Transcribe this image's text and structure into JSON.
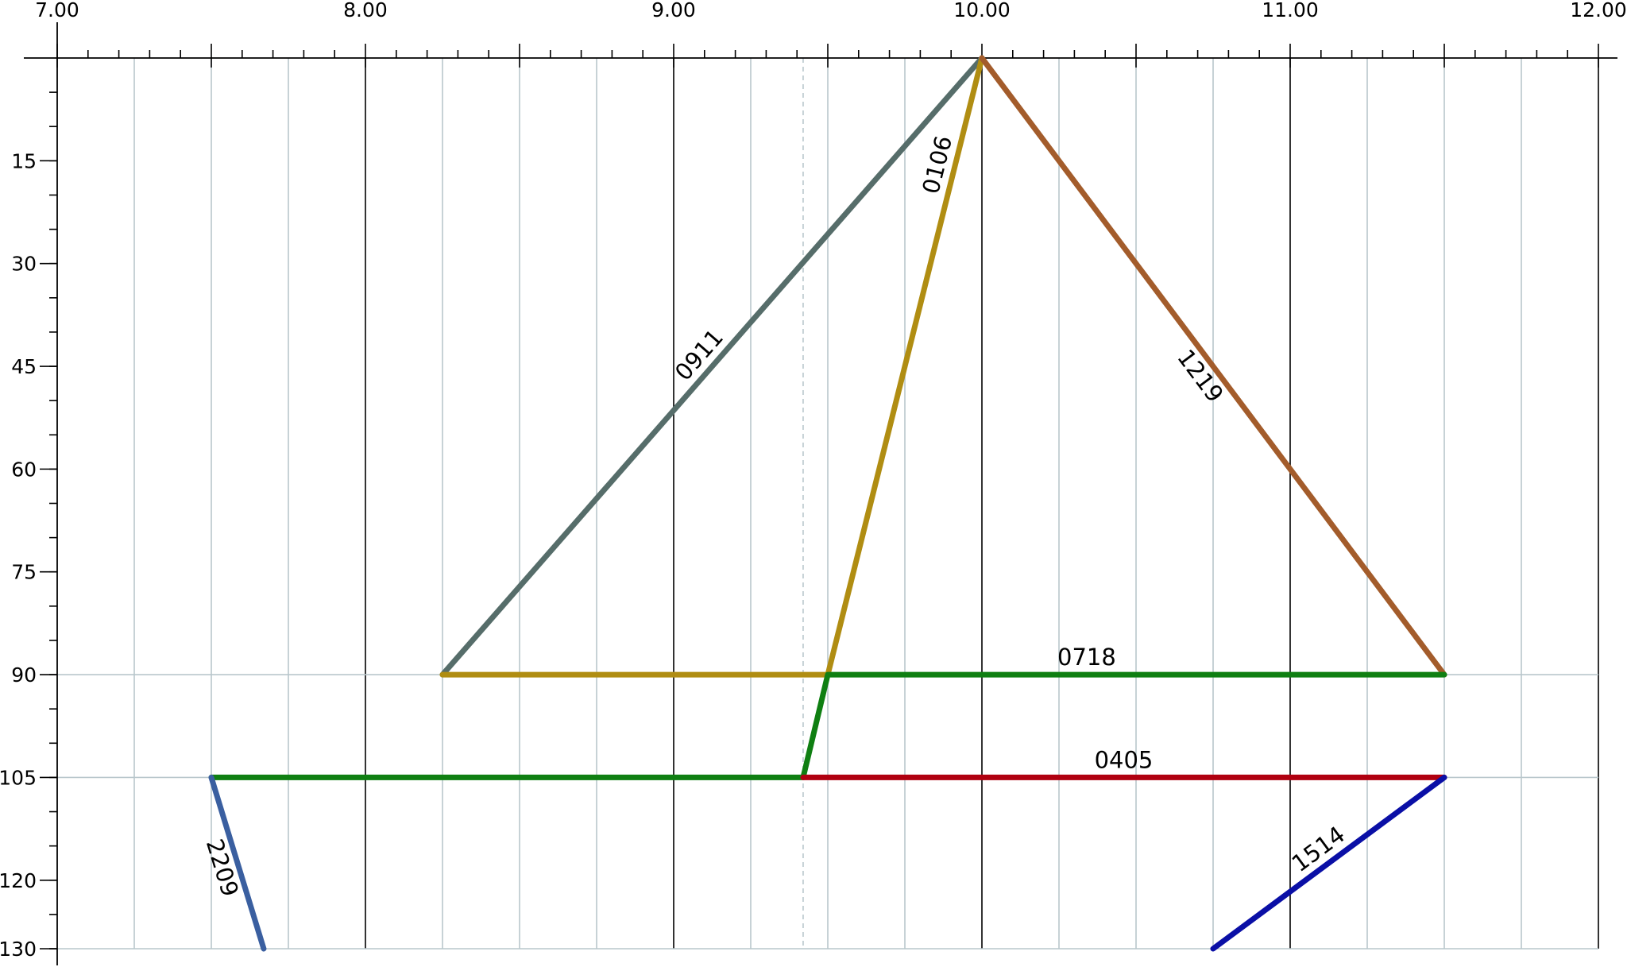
{
  "chart_data": {
    "type": "line",
    "title": "",
    "xlabel": "",
    "ylabel": "",
    "xlim": [
      7.0,
      12.0
    ],
    "ylim": [
      0,
      130
    ],
    "x_axis_position": "top",
    "y_inverted": true,
    "x_tick_labels": [
      "7.00",
      "8.00",
      "9.00",
      "10.00",
      "11.00",
      "12.00"
    ],
    "x_tick_values": [
      7,
      8,
      9,
      10,
      11,
      12
    ],
    "y_tick_labels": [
      "15",
      "30",
      "45",
      "60",
      "75",
      "90",
      "105",
      "120",
      "130"
    ],
    "y_tick_values": [
      15,
      30,
      45,
      60,
      75,
      90,
      105,
      120,
      130
    ],
    "grid": "on",
    "dashed_marker_x": 9.42,
    "series": [
      {
        "label": "0911",
        "color": "#566d6a",
        "points": [
          [
            8.25,
            90
          ],
          [
            10.0,
            0
          ]
        ],
        "label_pos": 0.5
      },
      {
        "label": "0106",
        "color": "#b08d12",
        "points": [
          [
            8.25,
            90
          ],
          [
            9.5,
            90
          ],
          [
            10.0,
            0
          ]
        ],
        "label_pos": 0.82
      },
      {
        "label": "1219",
        "color": "#a35c2b",
        "points": [
          [
            10.0,
            0
          ],
          [
            11.5,
            90
          ]
        ],
        "label_pos": 0.5,
        "label_side": "right"
      },
      {
        "label": "0718",
        "color": "#0f7f12",
        "points": [
          [
            7.5,
            105
          ],
          [
            9.42,
            105
          ],
          [
            9.5,
            90
          ],
          [
            11.5,
            90
          ]
        ],
        "label_pos": 0.42
      },
      {
        "label": "0405",
        "color": "#b00010",
        "points": [
          [
            9.42,
            105
          ],
          [
            11.5,
            105
          ]
        ],
        "label_pos": 0.5
      },
      {
        "label": "1514",
        "color": "#0a0fa6",
        "points": [
          [
            10.75,
            130
          ],
          [
            11.5,
            105
          ]
        ],
        "label_pos": 0.5
      },
      {
        "label": "2209",
        "color": "#3a5fa0",
        "points": [
          [
            7.5,
            105
          ],
          [
            7.67,
            130
          ]
        ],
        "label_pos": 0.5,
        "label_side": "right"
      }
    ]
  }
}
